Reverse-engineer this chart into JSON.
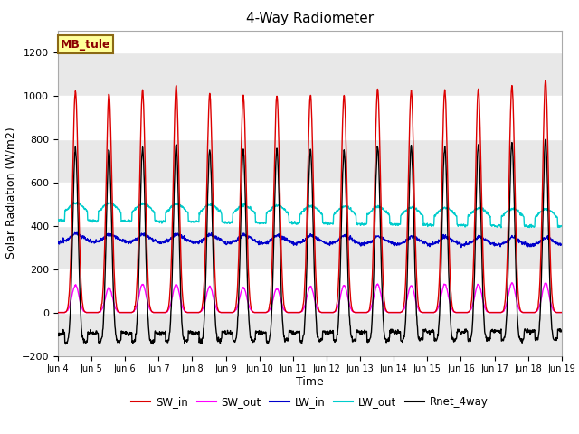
{
  "title": "4-Way Radiometer",
  "xlabel": "Time",
  "ylabel": "Solar Radiation (W/m2)",
  "ylim": [
    -200,
    1300
  ],
  "yticks": [
    -200,
    0,
    200,
    400,
    600,
    800,
    1000,
    1200
  ],
  "station_label": "MB_tule",
  "x_tick_labels": [
    "Jun 4",
    "Jun 5",
    "Jun 6",
    "Jun 7",
    "Jun 8",
    "Jun 9",
    "Jun 10",
    "Jun 11",
    "Jun 12",
    "Jun 13",
    "Jun 14",
    "Jun 15",
    "Jun 16",
    "Jun 17",
    "Jun 18",
    "Jun 19"
  ],
  "colors": {
    "SW_in": "#dd0000",
    "SW_out": "#ff00ff",
    "LW_in": "#0000cc",
    "LW_out": "#00cccc",
    "Rnet_4way": "#000000"
  },
  "legend_labels": [
    "SW_in",
    "SW_out",
    "LW_in",
    "LW_out",
    "Rnet_4way"
  ],
  "n_days": 15,
  "SW_in_peaks": [
    1020,
    1010,
    1025,
    1045,
    1005,
    1000,
    1000,
    1005,
    1000,
    1030,
    1020,
    1025,
    1030,
    1045,
    1070
  ],
  "SW_out_peaks": [
    125,
    115,
    130,
    130,
    120,
    115,
    110,
    120,
    125,
    130,
    125,
    130,
    130,
    135,
    135
  ],
  "background_color": "#ffffff",
  "fig_bg_color": "#ffffff"
}
